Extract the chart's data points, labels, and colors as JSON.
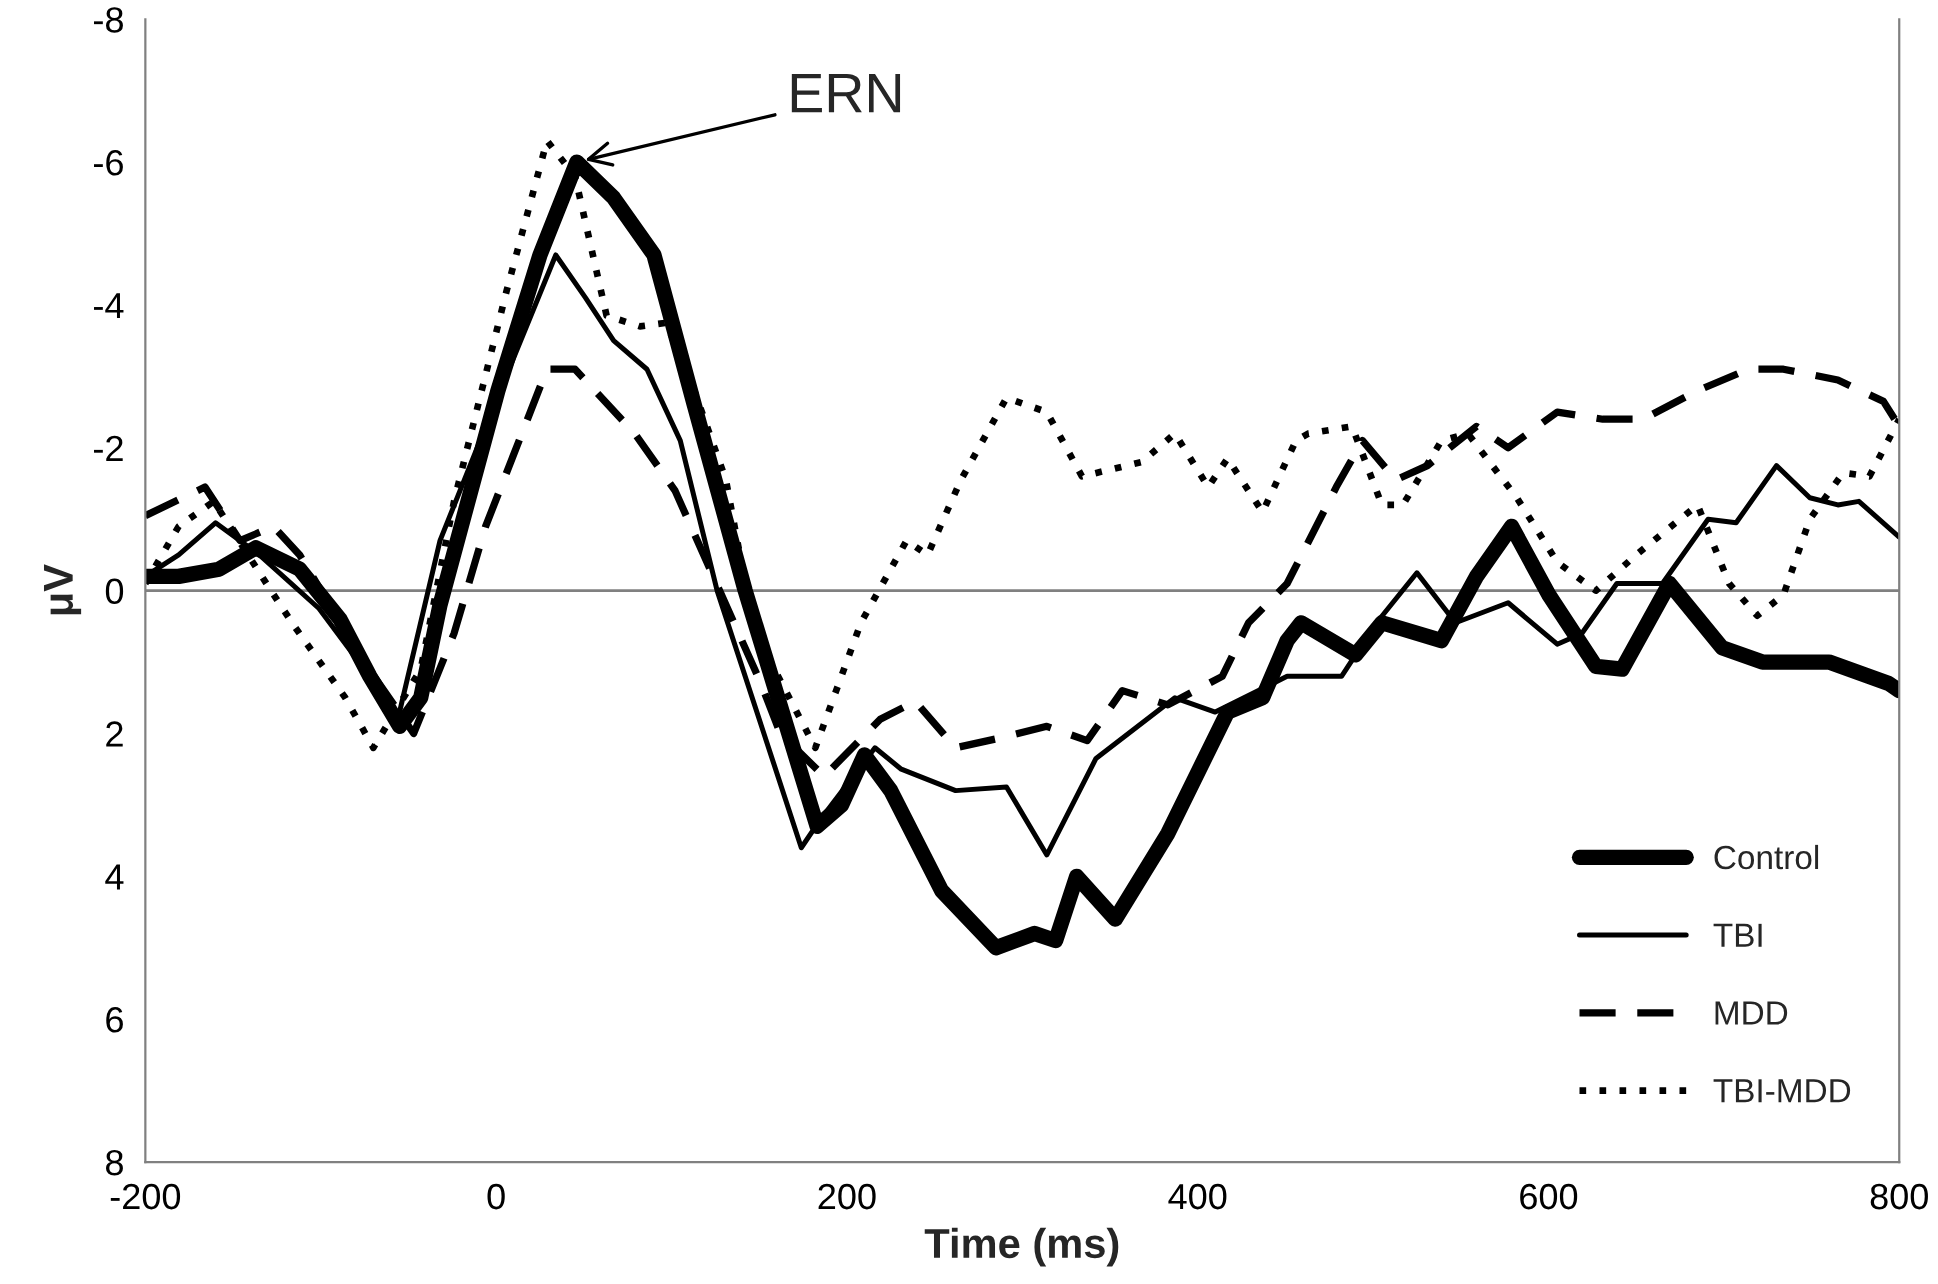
{
  "chart_data": {
    "type": "line",
    "xlabel": "Time (ms)",
    "ylabel": "μV",
    "xlim": [
      -200,
      800
    ],
    "xticks": [
      -200,
      0,
      200,
      400,
      600,
      800
    ],
    "ylim": [
      8,
      -8
    ],
    "yticks": [
      -8,
      -6,
      -4,
      -2,
      0,
      2,
      4,
      6,
      8
    ],
    "grid": false,
    "legend": "bottom right",
    "marker": "none",
    "ref_lines": [
      {
        "axis": "y",
        "value": 0,
        "color": "#808080"
      }
    ],
    "annotations": [
      {
        "text": "ERN",
        "x": 46,
        "y": -6
      }
    ],
    "series": [
      {
        "name": "Control",
        "color": "#000000",
        "line_style": "solid",
        "x": [
          -200,
          -181,
          -158,
          -137,
          -112,
          -89,
          -72,
          -55,
          -43,
          -32,
          1,
          25,
          46,
          67,
          90,
          113,
          142,
          183,
          197,
          210,
          225,
          254,
          285,
          307,
          319,
          331,
          353,
          383,
          417,
          437,
          451,
          459,
          490,
          505,
          539,
          559,
          579,
          600,
          627,
          642,
          669,
          699,
          722,
          760,
          794,
          800
        ],
        "values": [
          -0.2,
          -0.2,
          -0.3,
          -0.6,
          -0.3,
          0.4,
          1.2,
          1.9,
          1.5,
          0.2,
          -2.8,
          -4.7,
          -6.0,
          -5.5,
          -4.7,
          -2.6,
          0,
          3.3,
          3.0,
          2.3,
          2.8,
          4.2,
          5.0,
          4.8,
          4.9,
          4.0,
          4.6,
          3.4,
          1.7,
          1.5,
          0.7,
          0.45,
          0.9,
          0.45,
          0.7,
          -0.2,
          -0.9,
          0.05,
          1.06,
          1.1,
          -0.1,
          0.8,
          1.0,
          1.0,
          1.3,
          1.4
        ]
      },
      {
        "name": "TBI",
        "color": "#000000",
        "line_style": "solid",
        "x": [
          -200,
          -181,
          -160,
          -135,
          -101,
          -66,
          -57,
          -32,
          -1,
          34,
          51,
          67,
          86,
          105,
          126,
          174,
          185,
          216,
          231,
          262,
          291,
          314,
          342,
          387,
          410,
          451,
          482,
          502,
          525,
          547,
          577,
          605,
          619,
          639,
          665,
          691,
          707,
          730,
          749,
          765,
          777,
          800
        ],
        "values": [
          -0.2,
          -0.5,
          -0.95,
          -0.5,
          0.25,
          1.4,
          1.9,
          -0.7,
          -2.6,
          -4.7,
          -4.1,
          -3.5,
          -3.1,
          -2.1,
          0,
          3.6,
          3.2,
          2.2,
          2.5,
          2.8,
          2.75,
          3.7,
          2.35,
          1.5,
          1.7,
          1.2,
          1.2,
          0.45,
          -0.25,
          0.45,
          0.17,
          0.75,
          0.6,
          -0.1,
          -0.1,
          -1.0,
          -0.95,
          -1.75,
          -1.3,
          -1.2,
          -1.25,
          -0.75
        ]
      },
      {
        "name": "MDD",
        "color": "#000000",
        "line_style": "dashed",
        "x": [
          -200,
          -166,
          -146,
          -127,
          -112,
          -78,
          -47,
          -24,
          -6,
          29,
          45,
          79,
          102,
          151,
          162,
          187,
          219,
          239,
          262,
          288,
          314,
          337,
          357,
          383,
          414,
          429,
          451,
          479,
          494,
          513,
          531,
          559,
          577,
          605,
          631,
          654,
          685,
          714,
          734,
          765,
          791,
          800
        ],
        "values": [
          -1.05,
          -1.45,
          -0.7,
          -0.9,
          -0.5,
          0.9,
          2.0,
          0.6,
          -0.9,
          -3.1,
          -3.1,
          -2.2,
          -1.4,
          1.3,
          2.0,
          2.6,
          1.8,
          1.55,
          2.2,
          2.06,
          1.9,
          2.1,
          1.4,
          1.6,
          1.2,
          0.45,
          -0.1,
          -1.45,
          -2.1,
          -1.55,
          -1.75,
          -2.3,
          -2.0,
          -2.5,
          -2.4,
          -2.4,
          -2.8,
          -3.1,
          -3.1,
          -2.95,
          -2.65,
          -2.3
        ]
      },
      {
        "name": "TBI-MDD",
        "color": "#000000",
        "line_style": "dotted",
        "x": [
          -200,
          -181,
          -161,
          -131,
          -115,
          -86,
          -70,
          -43,
          -24,
          6,
          29,
          45,
          63,
          82,
          97,
          113,
          131,
          147,
          182,
          208,
          234,
          246,
          265,
          291,
          314,
          334,
          368,
          387,
          406,
          417,
          437,
          456,
          463,
          488,
          505,
          517,
          539,
          554,
          582,
          605,
          627,
          650,
          685,
          703,
          719,
          734,
          749,
          768,
          783,
          800
        ],
        "values": [
          -0.1,
          -0.9,
          -1.25,
          -0.1,
          0.5,
          1.5,
          2.2,
          1.1,
          -1.25,
          -4.2,
          -6.3,
          -5.8,
          -3.85,
          -3.7,
          -3.75,
          -2.8,
          -1.55,
          0.55,
          2.2,
          0.45,
          -0.7,
          -0.5,
          -1.55,
          -2.7,
          -2.5,
          -1.6,
          -1.8,
          -2.2,
          -1.45,
          -1.85,
          -1.1,
          -2.1,
          -2.2,
          -2.3,
          -1.2,
          -1.2,
          -2.1,
          -2.2,
          -1.3,
          -0.4,
          0,
          -0.5,
          -1.2,
          -0.1,
          0.35,
          0.06,
          -1.0,
          -1.65,
          -1.6,
          -2.4
        ]
      }
    ]
  }
}
